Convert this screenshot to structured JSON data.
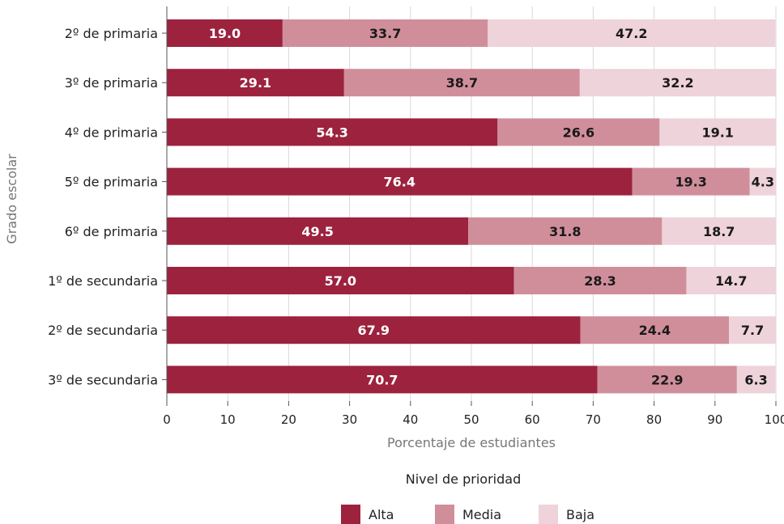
{
  "chart_data": {
    "type": "bar",
    "orientation": "horizontal",
    "stacked": true,
    "categories": [
      "2º de primaria",
      "3º de primaria",
      "4º de primaria",
      "5º de primaria",
      "6º de primaria",
      "1º de secundaria",
      "2º de secundaria",
      "3º de secundaria"
    ],
    "series": [
      {
        "name": "Alta",
        "color": "#9c223e",
        "label_color": "#ffffff",
        "values": [
          19.0,
          29.1,
          54.3,
          76.4,
          49.5,
          57.0,
          67.9,
          70.7
        ]
      },
      {
        "name": "Media",
        "color": "#d08e9b",
        "label_color": "#1a1a1a",
        "values": [
          33.7,
          38.7,
          26.6,
          19.3,
          31.8,
          28.3,
          24.4,
          22.9
        ]
      },
      {
        "name": "Baja",
        "color": "#eed3da",
        "label_color": "#1a1a1a",
        "values": [
          47.2,
          32.2,
          19.1,
          4.3,
          18.7,
          14.7,
          7.7,
          6.3
        ]
      }
    ],
    "xlabel": "Porcentaje de estudiantes",
    "ylabel": "Grado escolar",
    "xlim": [
      0,
      100
    ],
    "xticks": [
      0,
      10,
      20,
      30,
      40,
      50,
      60,
      70,
      80,
      90,
      100
    ],
    "grid": true,
    "legend": {
      "title": "Nivel de prioridad",
      "placement": "bottom"
    }
  }
}
